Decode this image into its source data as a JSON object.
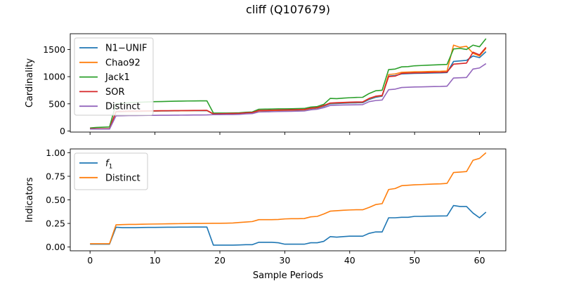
{
  "figure_title": "cliff (Q107679)",
  "chart_data": [
    {
      "type": "line",
      "title": "",
      "xlabel": "",
      "ylabel": "Cardinality",
      "xlim": [
        -3.05,
        64.05
      ],
      "ylim": [
        -20,
        1790
      ],
      "xticks": [
        0,
        10,
        20,
        30,
        40,
        50,
        60
      ],
      "xtick_labels_visible": false,
      "yticks": [
        0,
        500,
        1000,
        1500
      ],
      "legend_position": "upper-left",
      "x": [
        0,
        1,
        2,
        3,
        4,
        5,
        6,
        7,
        8,
        9,
        10,
        11,
        12,
        13,
        14,
        15,
        16,
        17,
        18,
        19,
        20,
        21,
        22,
        23,
        24,
        25,
        26,
        27,
        28,
        29,
        30,
        31,
        32,
        33,
        34,
        35,
        36,
        37,
        38,
        39,
        40,
        41,
        42,
        43,
        44,
        45,
        46,
        47,
        48,
        49,
        50,
        51,
        52,
        53,
        54,
        55,
        56,
        57,
        58,
        59,
        60,
        61
      ],
      "series": [
        {
          "name": "N1−UNIF",
          "color": "#1f77b4",
          "values": [
            40,
            40,
            40,
            40,
            350,
            355,
            358,
            360,
            362,
            364,
            366,
            368,
            369,
            370,
            371,
            372,
            373,
            374,
            375,
            310,
            312,
            315,
            318,
            320,
            330,
            335,
            370,
            372,
            375,
            378,
            380,
            382,
            385,
            388,
            410,
            420,
            455,
            500,
            505,
            510,
            515,
            518,
            520,
            580,
            620,
            640,
            1010,
            1020,
            1050,
            1055,
            1060,
            1062,
            1065,
            1068,
            1070,
            1075,
            1280,
            1290,
            1300,
            1380,
            1350,
            1460
          ]
        },
        {
          "name": "Chao92",
          "color": "#ff7f0e",
          "values": [
            40,
            40,
            40,
            40,
            355,
            358,
            360,
            362,
            364,
            366,
            368,
            370,
            371,
            372,
            373,
            374,
            375,
            376,
            377,
            312,
            314,
            317,
            320,
            322,
            332,
            337,
            372,
            374,
            377,
            380,
            382,
            385,
            388,
            390,
            415,
            425,
            465,
            510,
            515,
            520,
            525,
            528,
            530,
            595,
            635,
            650,
            1040,
            1050,
            1080,
            1085,
            1090,
            1092,
            1095,
            1098,
            1100,
            1105,
            1580,
            1540,
            1560,
            1430,
            1380,
            1520
          ]
        },
        {
          "name": "Jack1",
          "color": "#2ca02c",
          "values": [
            55,
            65,
            70,
            75,
            500,
            510,
            520,
            525,
            530,
            535,
            540,
            542,
            545,
            548,
            550,
            552,
            553,
            554,
            555,
            330,
            330,
            330,
            332,
            335,
            345,
            350,
            400,
            402,
            405,
            407,
            408,
            410,
            412,
            415,
            440,
            450,
            490,
            600,
            595,
            605,
            612,
            618,
            620,
            690,
            740,
            750,
            1130,
            1140,
            1180,
            1185,
            1200,
            1205,
            1210,
            1215,
            1220,
            1225,
            1510,
            1520,
            1500,
            1580,
            1550,
            1700
          ]
        },
        {
          "name": "SOR",
          "color": "#d62728",
          "values": [
            42,
            42,
            42,
            42,
            360,
            362,
            365,
            367,
            369,
            371,
            372,
            373,
            374,
            375,
            376,
            377,
            378,
            379,
            380,
            315,
            317,
            320,
            323,
            325,
            335,
            340,
            378,
            380,
            383,
            386,
            388,
            390,
            393,
            396,
            420,
            430,
            470,
            515,
            520,
            525,
            530,
            533,
            535,
            600,
            640,
            655,
            1000,
            1010,
            1060,
            1065,
            1070,
            1072,
            1075,
            1078,
            1080,
            1085,
            1230,
            1240,
            1250,
            1450,
            1400,
            1540
          ]
        },
        {
          "name": "Distinct",
          "color": "#9467bd",
          "values": [
            35,
            35,
            35,
            35,
            280,
            282,
            284,
            285,
            286,
            287,
            288,
            289,
            290,
            291,
            292,
            293,
            294,
            295,
            296,
            300,
            301,
            302,
            303,
            305,
            315,
            320,
            350,
            352,
            355,
            358,
            360,
            362,
            365,
            368,
            390,
            400,
            430,
            470,
            475,
            478,
            480,
            482,
            485,
            540,
            560,
            570,
            760,
            770,
            800,
            805,
            810,
            812,
            815,
            818,
            820,
            825,
            975,
            980,
            985,
            1140,
            1160,
            1240
          ]
        }
      ]
    },
    {
      "type": "line",
      "title": "",
      "xlabel": "Sample Periods",
      "ylabel": "Indicators",
      "xlim": [
        -3.05,
        64.05
      ],
      "ylim": [
        -0.04,
        1.04
      ],
      "xticks": [
        0,
        10,
        20,
        30,
        40,
        50,
        60
      ],
      "yticks": [
        0.0,
        0.25,
        0.5,
        0.75,
        1.0
      ],
      "ytick_labels": [
        "0.00",
        "0.25",
        "0.50",
        "0.75",
        "1.00"
      ],
      "legend_position": "upper-left",
      "x": [
        0,
        1,
        2,
        3,
        4,
        5,
        6,
        7,
        8,
        9,
        10,
        11,
        12,
        13,
        14,
        15,
        16,
        17,
        18,
        19,
        20,
        21,
        22,
        23,
        24,
        25,
        26,
        27,
        28,
        29,
        30,
        31,
        32,
        33,
        34,
        35,
        36,
        37,
        38,
        39,
        40,
        41,
        42,
        43,
        44,
        45,
        46,
        47,
        48,
        49,
        50,
        51,
        52,
        53,
        54,
        55,
        56,
        57,
        58,
        59,
        60,
        61
      ],
      "series": [
        {
          "name": "f1",
          "label_main": "f",
          "label_sub": "1",
          "color": "#1f77b4",
          "values": [
            0.03,
            0.03,
            0.03,
            0.03,
            0.21,
            0.205,
            0.205,
            0.205,
            0.207,
            0.208,
            0.208,
            0.209,
            0.21,
            0.21,
            0.211,
            0.211,
            0.212,
            0.212,
            0.212,
            0.02,
            0.02,
            0.02,
            0.02,
            0.022,
            0.025,
            0.025,
            0.05,
            0.05,
            0.05,
            0.045,
            0.03,
            0.03,
            0.03,
            0.03,
            0.045,
            0.045,
            0.06,
            0.11,
            0.105,
            0.11,
            0.115,
            0.115,
            0.115,
            0.145,
            0.16,
            0.16,
            0.31,
            0.31,
            0.315,
            0.315,
            0.325,
            0.325,
            0.327,
            0.328,
            0.329,
            0.33,
            0.44,
            0.43,
            0.43,
            0.36,
            0.31,
            0.37
          ]
        },
        {
          "name": "Distinct",
          "color": "#ff7f0e",
          "values": [
            0.035,
            0.035,
            0.035,
            0.035,
            0.235,
            0.238,
            0.24,
            0.24,
            0.242,
            0.243,
            0.244,
            0.245,
            0.246,
            0.247,
            0.248,
            0.249,
            0.25,
            0.25,
            0.251,
            0.252,
            0.252,
            0.253,
            0.255,
            0.26,
            0.265,
            0.27,
            0.29,
            0.29,
            0.29,
            0.292,
            0.298,
            0.3,
            0.3,
            0.302,
            0.32,
            0.325,
            0.35,
            0.38,
            0.385,
            0.39,
            0.393,
            0.395,
            0.395,
            0.42,
            0.45,
            0.46,
            0.61,
            0.62,
            0.65,
            0.655,
            0.66,
            0.662,
            0.665,
            0.668,
            0.67,
            0.675,
            0.79,
            0.795,
            0.8,
            0.92,
            0.94,
            1.0
          ]
        }
      ]
    }
  ]
}
